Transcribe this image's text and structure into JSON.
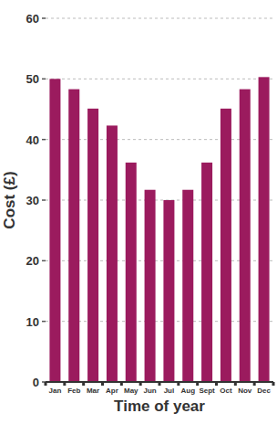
{
  "chart_data": {
    "type": "bar",
    "xlabel": "Time of year",
    "ylabel": "Cost (£)",
    "categories": [
      "Jan",
      "Feb",
      "Mar",
      "Apr",
      "May",
      "Jun",
      "Jul",
      "Aug",
      "Sept",
      "Oct",
      "Nov",
      "Dec"
    ],
    "values": [
      50,
      48.3,
      45.1,
      42.3,
      36.2,
      31.7,
      30,
      31.7,
      36.2,
      45.1,
      48.3,
      50.3
    ],
    "color": "#9b1b5e",
    "ylim": [
      0,
      60
    ],
    "yticks": [
      0,
      10,
      20,
      30,
      40,
      50,
      60
    ],
    "grid": true
  }
}
